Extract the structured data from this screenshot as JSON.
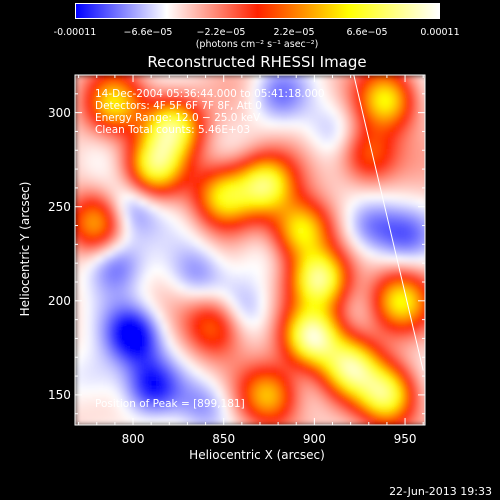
{
  "colorbar": {
    "ticks": [
      "-0.00011",
      "−6.6e−05",
      "−2.2e−05",
      "2.2e−05",
      "6.6e−05",
      "0.00011"
    ],
    "units": "(photons cm⁻² s⁻¹ asec⁻²)"
  },
  "chart_data": {
    "type": "heatmap",
    "title": "Reconstructed RHESSI Image",
    "xlabel": "Heliocentric X (arcsec)",
    "ylabel": "Heliocentric Y (arcsec)",
    "xlim": [
      768,
      961
    ],
    "ylim": [
      134,
      320
    ],
    "x_ticks": [
      "800",
      "850",
      "900",
      "950"
    ],
    "y_ticks": [
      "300",
      "250",
      "200",
      "150"
    ],
    "color_range": [
      -0.00011,
      0.00011
    ],
    "colormap": [
      "#0000ff",
      "#ffffff",
      "#ff2200",
      "#ffff00",
      "#ffffff"
    ],
    "annotations": {
      "time": "14-Dec-2004 05:36:44.000 to 05:41:18.000",
      "detectors": "Detectors: 4F 5F 6F 7F 8F, Att 0",
      "energy": "Energy Range: 12.0 − 25.0 keV",
      "clean": "Clean     Total counts: 5.46E+03",
      "peak": "Position of Peak = [899,181]"
    },
    "bright_features": [
      {
        "x": 822,
        "y": 293,
        "v": 9e-05
      },
      {
        "x": 812,
        "y": 272,
        "v": 8e-05
      },
      {
        "x": 850,
        "y": 256,
        "v": 7e-05
      },
      {
        "x": 873,
        "y": 262,
        "v": 9e-05
      },
      {
        "x": 893,
        "y": 238,
        "v": 8e-05
      },
      {
        "x": 903,
        "y": 212,
        "v": 0.0001
      },
      {
        "x": 899,
        "y": 181,
        "v": 0.00011
      },
      {
        "x": 920,
        "y": 165,
        "v": 9e-05
      },
      {
        "x": 940,
        "y": 150,
        "v": 9e-05
      },
      {
        "x": 947,
        "y": 200,
        "v": 7e-05
      },
      {
        "x": 940,
        "y": 307,
        "v": 7e-05
      },
      {
        "x": 790,
        "y": 305,
        "v": 6e-05
      },
      {
        "x": 780,
        "y": 242,
        "v": 5e-05
      },
      {
        "x": 875,
        "y": 150,
        "v": 6e-05
      },
      {
        "x": 845,
        "y": 187,
        "v": 4e-05
      },
      {
        "x": 930,
        "y": 278,
        "v": 4e-05
      }
    ],
    "dark_features": [
      {
        "x": 800,
        "y": 182,
        "v": -0.0001
      },
      {
        "x": 810,
        "y": 155,
        "v": -8e-05
      },
      {
        "x": 790,
        "y": 220,
        "v": -7e-05
      },
      {
        "x": 798,
        "y": 248,
        "v": -7e-05
      },
      {
        "x": 835,
        "y": 215,
        "v": -6e-05
      },
      {
        "x": 860,
        "y": 195,
        "v": -5e-05
      },
      {
        "x": 880,
        "y": 310,
        "v": -6e-05
      },
      {
        "x": 910,
        "y": 290,
        "v": -5e-05
      },
      {
        "x": 930,
        "y": 240,
        "v": -7e-05
      },
      {
        "x": 950,
        "y": 235,
        "v": -6e-05
      },
      {
        "x": 840,
        "y": 145,
        "v": -6e-05
      },
      {
        "x": 780,
        "y": 160,
        "v": -5e-05
      },
      {
        "x": 870,
        "y": 225,
        "v": -4e-05
      }
    ],
    "limb": [
      [
        921,
        323
      ],
      [
        960,
        163
      ]
    ]
  },
  "footer": "22-Jun-2013 19:33"
}
